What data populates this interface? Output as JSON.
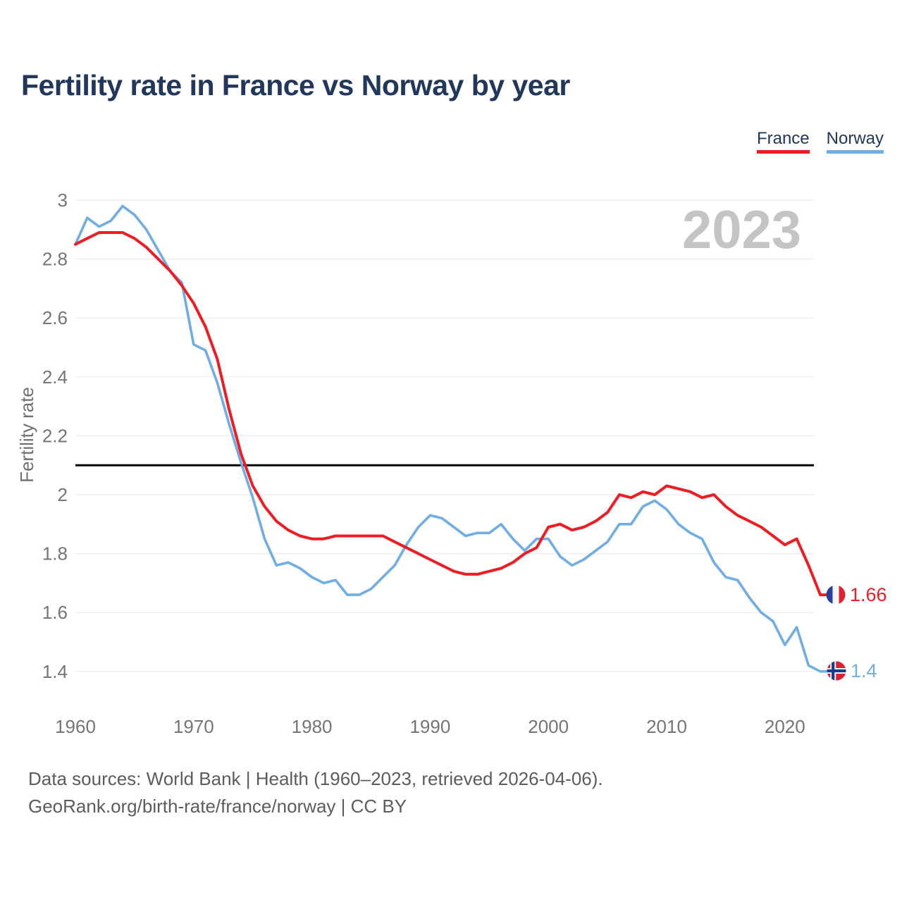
{
  "title": "Fertility rate in France vs Norway by year",
  "watermark": "2023",
  "legend": [
    {
      "label": "France",
      "color": "#ee1d23"
    },
    {
      "label": "Norway",
      "color": "#70ade4"
    }
  ],
  "y_axis": {
    "label": "Fertility rate",
    "ticks": [
      "3",
      "2.8",
      "2.6",
      "2.4",
      "2.2",
      "2",
      "1.8",
      "1.6",
      "1.4"
    ]
  },
  "x_axis": {
    "ticks": [
      "1960",
      "1970",
      "1980",
      "1990",
      "2000",
      "2010",
      "2020"
    ]
  },
  "reference_line": {
    "value": 2.1
  },
  "end_labels": [
    {
      "series": "France",
      "value": "1.66",
      "color": "#ee1d23"
    },
    {
      "series": "Norway",
      "value": "1.4",
      "color": "#70ade4"
    }
  ],
  "footer": {
    "line1": "Data sources: World Bank | Health (1960–2023, retrieved 2026-04-06).",
    "line2": "GeoRank.org/birth-rate/france/norway | CC BY"
  },
  "chart_data": {
    "type": "line",
    "title": "Fertility rate in France vs Norway by year",
    "xlabel": "",
    "ylabel": "Fertility rate",
    "ylim": [
      1.3,
      3.05
    ],
    "xlim": [
      1960,
      2023
    ],
    "grid": "horizontal",
    "y_tick_step": 0.2,
    "x": [
      1960,
      1961,
      1962,
      1963,
      1964,
      1965,
      1966,
      1967,
      1968,
      1969,
      1970,
      1971,
      1972,
      1973,
      1974,
      1975,
      1976,
      1977,
      1978,
      1979,
      1980,
      1981,
      1982,
      1983,
      1984,
      1985,
      1986,
      1987,
      1988,
      1989,
      1990,
      1991,
      1992,
      1993,
      1994,
      1995,
      1996,
      1997,
      1998,
      1999,
      2000,
      2001,
      2002,
      2003,
      2004,
      2005,
      2006,
      2007,
      2008,
      2009,
      2010,
      2011,
      2012,
      2013,
      2014,
      2015,
      2016,
      2017,
      2018,
      2019,
      2020,
      2021,
      2022,
      2023
    ],
    "series": [
      {
        "name": "Norway",
        "id": "norway",
        "color": "#70ade4",
        "final_value": 1.4,
        "values": [
          2.85,
          2.94,
          2.91,
          2.93,
          2.98,
          2.95,
          2.9,
          2.83,
          2.76,
          2.72,
          2.51,
          2.49,
          2.38,
          2.24,
          2.11,
          1.99,
          1.85,
          1.76,
          1.77,
          1.75,
          1.72,
          1.7,
          1.71,
          1.66,
          1.66,
          1.68,
          1.72,
          1.76,
          1.83,
          1.89,
          1.93,
          1.92,
          1.89,
          1.86,
          1.87,
          1.87,
          1.9,
          1.85,
          1.81,
          1.85,
          1.85,
          1.79,
          1.76,
          1.78,
          1.81,
          1.84,
          1.9,
          1.9,
          1.96,
          1.98,
          1.95,
          1.9,
          1.87,
          1.85,
          1.77,
          1.72,
          1.71,
          1.65,
          1.6,
          1.57,
          1.49,
          1.55,
          1.42,
          1.4
        ]
      },
      {
        "name": "France",
        "id": "france",
        "color": "#ee1d23",
        "final_value": 1.66,
        "values": [
          2.85,
          2.87,
          2.89,
          2.89,
          2.89,
          2.87,
          2.84,
          2.8,
          2.76,
          2.71,
          2.65,
          2.57,
          2.46,
          2.29,
          2.14,
          2.03,
          1.96,
          1.91,
          1.88,
          1.86,
          1.85,
          1.85,
          1.86,
          1.86,
          1.86,
          1.86,
          1.86,
          1.84,
          1.82,
          1.8,
          1.78,
          1.76,
          1.74,
          1.73,
          1.73,
          1.74,
          1.75,
          1.77,
          1.8,
          1.82,
          1.89,
          1.9,
          1.88,
          1.89,
          1.91,
          1.94,
          2.0,
          1.99,
          2.01,
          2.0,
          2.03,
          2.02,
          2.01,
          1.99,
          2.0,
          1.96,
          1.93,
          1.91,
          1.89,
          1.86,
          1.83,
          1.85,
          1.76,
          1.66
        ]
      }
    ]
  }
}
